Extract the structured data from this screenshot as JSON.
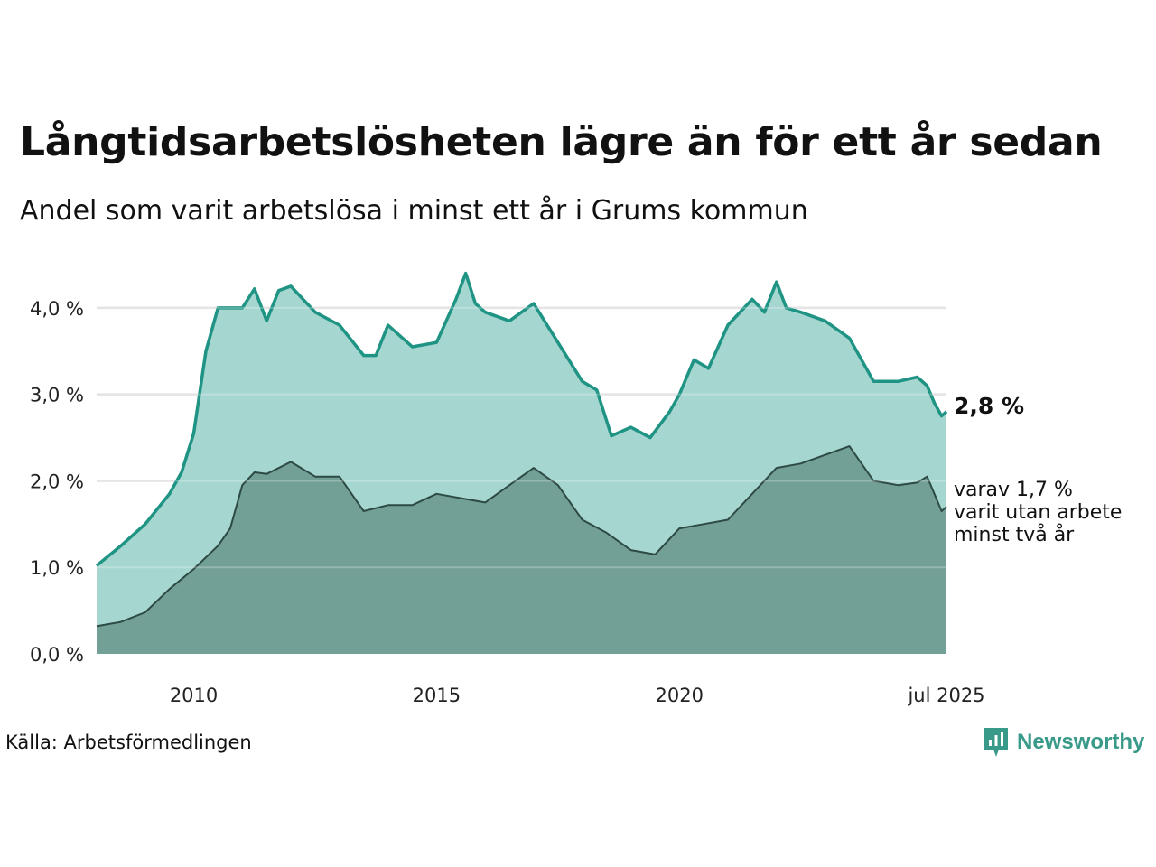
{
  "title": "Långtidsarbetslösheten lägre än för ett år sedan",
  "subtitle": "Andel som varit arbetslösa i minst ett år i Grums kommun",
  "source": "Källa: Arbetsförmedlingen",
  "brand": "Newsworthy",
  "colors": {
    "series1_fill": "#a6d6d0",
    "series1_line": "#1f9484",
    "series2_fill": "#729f96",
    "series2_line": "#2d4a44",
    "grid": "#dddddd"
  },
  "chart_data": {
    "type": "area",
    "title": "Långtidsarbetslösheten lägre än för ett år sedan",
    "subtitle": "Andel som varit arbetslösa i minst ett år i Grums kommun",
    "ylim": [
      0,
      4.5
    ],
    "y_ticks": [
      {
        "value": 0,
        "label": "0,0 %"
      },
      {
        "value": 1,
        "label": "1,0 %"
      },
      {
        "value": 2,
        "label": "2,0 %"
      },
      {
        "value": 3,
        "label": "3,0 %"
      },
      {
        "value": 4,
        "label": "4,0 %"
      }
    ],
    "x_ticks": [
      {
        "value": 2010,
        "label": "2010"
      },
      {
        "value": 2015,
        "label": "2015"
      },
      {
        "value": 2020,
        "label": "2020"
      },
      {
        "value": 2025.5,
        "label": "jul 2025"
      }
    ],
    "xlim": [
      2008.0,
      2025.5
    ],
    "grid": true,
    "series": [
      {
        "key": "min1",
        "end_label": "2,8 %",
        "x": [
          2008.0,
          2008.5,
          2009.0,
          2009.5,
          2009.75,
          2010.0,
          2010.25,
          2010.5,
          2011.0,
          2011.25,
          2011.5,
          2011.75,
          2012.0,
          2012.25,
          2012.5,
          2013.0,
          2013.5,
          2013.75,
          2014.0,
          2014.5,
          2015.0,
          2015.4,
          2015.6,
          2015.8,
          2016.0,
          2016.5,
          2017.0,
          2017.5,
          2018.0,
          2018.3,
          2018.6,
          2019.0,
          2019.4,
          2019.8,
          2020.0,
          2020.3,
          2020.6,
          2021.0,
          2021.5,
          2021.75,
          2022.0,
          2022.2,
          2022.5,
          2023.0,
          2023.5,
          2024.0,
          2024.5,
          2024.9,
          2025.1,
          2025.25,
          2025.4,
          2025.5
        ],
        "y": [
          1.02,
          1.25,
          1.5,
          1.85,
          2.1,
          2.55,
          3.5,
          4.0,
          4.0,
          4.22,
          3.85,
          4.2,
          4.25,
          4.1,
          3.95,
          3.8,
          3.45,
          3.45,
          3.8,
          3.55,
          3.6,
          4.1,
          4.4,
          4.05,
          3.95,
          3.85,
          4.05,
          3.6,
          3.15,
          3.05,
          2.52,
          2.62,
          2.5,
          2.8,
          3.0,
          3.4,
          3.3,
          3.8,
          4.1,
          3.95,
          4.3,
          4.0,
          3.95,
          3.85,
          3.65,
          3.15,
          3.15,
          3.2,
          3.1,
          2.9,
          2.75,
          2.8
        ]
      },
      {
        "key": "min2",
        "end_label_lines": [
          "varav 1,7 %",
          "varit utan arbete",
          "minst två år"
        ],
        "x": [
          2008.0,
          2008.5,
          2009.0,
          2009.5,
          2010.0,
          2010.5,
          2010.75,
          2011.0,
          2011.25,
          2011.5,
          2012.0,
          2012.5,
          2013.0,
          2013.5,
          2014.0,
          2014.5,
          2015.0,
          2015.5,
          2016.0,
          2016.5,
          2017.0,
          2017.5,
          2018.0,
          2018.5,
          2019.0,
          2019.5,
          2020.0,
          2020.5,
          2021.0,
          2021.5,
          2022.0,
          2022.5,
          2023.0,
          2023.5,
          2024.0,
          2024.5,
          2024.9,
          2025.1,
          2025.25,
          2025.4,
          2025.5
        ],
        "y": [
          0.32,
          0.37,
          0.48,
          0.75,
          0.98,
          1.25,
          1.45,
          1.95,
          2.1,
          2.08,
          2.22,
          2.05,
          2.05,
          1.65,
          1.72,
          1.72,
          1.85,
          1.8,
          1.75,
          1.95,
          2.15,
          1.95,
          1.55,
          1.4,
          1.2,
          1.15,
          1.45,
          1.5,
          1.55,
          1.85,
          2.15,
          2.2,
          2.3,
          2.4,
          2.0,
          1.95,
          1.98,
          2.05,
          1.85,
          1.65,
          1.7
        ]
      }
    ]
  }
}
